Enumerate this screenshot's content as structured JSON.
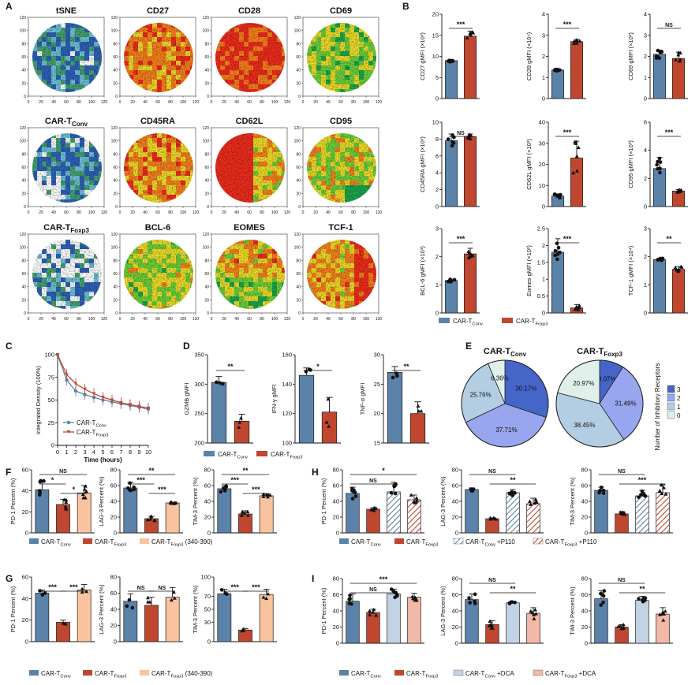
{
  "colors": {
    "conv": "#5b82a8",
    "foxp3": "#c0472f",
    "foxp3_light": "#f9c49d",
    "conv_light": "#c3d3e6",
    "pink": "#f2b8a8",
    "pie3": "#4565c9",
    "pie2": "#98a5ef",
    "pie1": "#b3cee3",
    "pie0": "#dff0ea",
    "heatmap": [
      "#ef2d1c",
      "#f6811d",
      "#eedc29",
      "#6ed03a",
      "#1aa84d"
    ]
  },
  "panel_labels": [
    "A",
    "B",
    "C",
    "D",
    "E",
    "F",
    "G",
    "H",
    "I"
  ],
  "tsne": {
    "titles": [
      "tSNE",
      "CD27",
      "CD28",
      "CD69",
      "CAR-T",
      "CD45RA",
      "CD62L",
      "CD95",
      "CAR-T",
      "BCL-6",
      "EOMES",
      "TCF-1"
    ],
    "title_subs": [
      "",
      "",
      "",
      "",
      "Conv",
      "",
      "",
      "",
      "Foxp3",
      "",
      "",
      ""
    ],
    "xticks": [
      "0",
      "20",
      "40",
      "60",
      "80",
      "100",
      "120"
    ],
    "yticks": [
      "0",
      "20",
      "40",
      "60",
      "80",
      "100",
      "120"
    ]
  },
  "legend": {
    "conv_prefix": "CAR-T",
    "conv_sub": "Conv",
    "foxp3_prefix": "CAR-T",
    "foxp3_sub": "Foxp3",
    "foxp3_suffix": " (340-390)",
    "p110": " +P110",
    "dca": " +DCA"
  },
  "chart_data": [
    {
      "panel": "B",
      "type": "bar",
      "ylabel": "CD27 gMFI (×10³)",
      "ylim": [
        0,
        20
      ],
      "ticks": [
        0,
        5,
        10,
        15,
        20
      ],
      "values": [
        9.0,
        14.8
      ],
      "errors": [
        0.3,
        1.2
      ],
      "sig": [
        [
          "***",
          0,
          1
        ]
      ]
    },
    {
      "panel": "B",
      "type": "bar",
      "ylabel": "CD28 gMFI (×10⁴)",
      "ylim": [
        0,
        4
      ],
      "ticks": [
        0,
        1,
        2,
        3,
        4
      ],
      "values": [
        1.35,
        2.7
      ],
      "errors": [
        0.05,
        0.1
      ],
      "sig": [
        [
          "***",
          0,
          1
        ]
      ]
    },
    {
      "panel": "B",
      "type": "bar",
      "ylabel": "CD69 gMFI (×10²)",
      "ylim": [
        0,
        4
      ],
      "ticks": [
        0,
        1,
        2,
        3,
        4
      ],
      "values": [
        2.1,
        1.9
      ],
      "errors": [
        0.2,
        0.3
      ],
      "sig": [
        [
          "NS",
          0,
          1
        ]
      ]
    },
    {
      "panel": "B",
      "type": "bar",
      "ylabel": "CD45RA gMFI (×10³)",
      "ylim": [
        0,
        10
      ],
      "ticks": [
        0,
        2,
        4,
        6,
        8,
        10
      ],
      "values": [
        7.8,
        8.3
      ],
      "errors": [
        0.8,
        0.3
      ],
      "sig": [
        [
          "NS",
          0,
          1
        ]
      ]
    },
    {
      "panel": "B",
      "type": "bar",
      "ylabel": "CD62L gMFI (×10³)",
      "ylim": [
        0,
        40
      ],
      "ticks": [
        0,
        10,
        20,
        30,
        40
      ],
      "values": [
        5.0,
        23.0
      ],
      "errors": [
        1.0,
        8.0
      ],
      "sig": [
        [
          "***",
          0,
          1
        ]
      ]
    },
    {
      "panel": "B",
      "type": "bar",
      "ylabel": "CD95 gMFI (×10³)",
      "ylim": [
        0,
        6
      ],
      "ticks": [
        0,
        2,
        4,
        6
      ],
      "values": [
        2.7,
        1.1
      ],
      "errors": [
        0.8,
        0.1
      ],
      "sig": [
        [
          "***",
          0,
          1
        ]
      ]
    },
    {
      "panel": "B",
      "type": "bar",
      "ylabel": "BCL-6 gMFI (×10³)",
      "ylim": [
        0,
        3
      ],
      "ticks": [
        0,
        1,
        2,
        3
      ],
      "values": [
        1.15,
        2.1
      ],
      "errors": [
        0.05,
        0.2
      ],
      "sig": [
        [
          "***",
          0,
          1
        ]
      ]
    },
    {
      "panel": "B",
      "type": "bar",
      "ylabel": "Eomes gMFI (×10²)",
      "ylim": [
        0,
        2.5
      ],
      "ticks": [
        0.0,
        0.5,
        1.0,
        1.5,
        2.0,
        2.5
      ],
      "values": [
        1.8,
        0.15
      ],
      "errors": [
        0.4,
        0.1
      ],
      "sig": [
        [
          "***",
          0,
          1
        ]
      ]
    },
    {
      "panel": "B",
      "type": "bar",
      "ylabel": "TCF-1 gMFI (×10⁴)",
      "ylim": [
        0,
        3
      ],
      "ticks": [
        0,
        1,
        2,
        3
      ],
      "values": [
        1.9,
        1.55
      ],
      "errors": [
        0.05,
        0.1
      ],
      "sig": [
        [
          "**",
          0,
          1
        ]
      ]
    },
    {
      "panel": "C",
      "type": "line",
      "xlabel": "Time (hours)",
      "ylabel": "Integrated Density (100%)",
      "ylim": [
        0,
        100
      ],
      "ticks": [
        0,
        25,
        50,
        75,
        100
      ],
      "x": [
        0,
        1,
        2,
        3,
        4,
        5,
        6,
        7,
        8,
        9,
        10
      ],
      "series": [
        {
          "values": [
            100,
            72,
            60,
            56,
            53,
            50,
            48,
            46,
            44,
            42,
            40
          ]
        },
        {
          "values": [
            100,
            78,
            68,
            62,
            57,
            53,
            50,
            47,
            45,
            43,
            41
          ]
        }
      ]
    },
    {
      "panel": "D",
      "type": "bar",
      "ylabel": "GZMB gMFI",
      "ylim": [
        200,
        350
      ],
      "ticks": [
        200,
        250,
        300,
        350
      ],
      "values": [
        303,
        237
      ],
      "errors": [
        10,
        12
      ],
      "sig": [
        [
          "**",
          0,
          1
        ]
      ]
    },
    {
      "panel": "D",
      "type": "bar",
      "ylabel": "IFN-γ gMFI",
      "ylim": [
        100,
        160
      ],
      "ticks": [
        100,
        120,
        140,
        160
      ],
      "values": [
        146,
        121
      ],
      "errors": [
        5,
        10
      ],
      "sig": [
        [
          "*",
          0,
          1
        ]
      ]
    },
    {
      "panel": "D",
      "type": "bar",
      "ylabel": "TNF-α gMFI",
      "ylim": [
        15,
        30
      ],
      "ticks": [
        15,
        20,
        25,
        30
      ],
      "values": [
        27,
        20
      ],
      "errors": [
        1,
        2
      ],
      "sig": [
        [
          "**",
          0,
          1
        ]
      ]
    },
    {
      "panel": "E",
      "type": "pie",
      "title_prefix": "CAR-T",
      "title_sub": "Conv",
      "values": [
        30.17,
        37.71,
        25.76,
        6.36
      ],
      "labels": [
        "30.17%",
        "37.71%",
        "25.76%",
        "6.36%"
      ]
    },
    {
      "panel": "E",
      "type": "pie",
      "title_prefix": "CAR-T",
      "title_sub": "Foxp3",
      "values": [
        9.07,
        31.49,
        38.45,
        20.97
      ],
      "labels": [
        "9.07%",
        "31.49%",
        "38.45%",
        "20.97%"
      ],
      "legend_title": "Number of Inhibitory Receptors",
      "legend": [
        "3",
        "2",
        "1",
        "0"
      ]
    },
    {
      "panel": "F",
      "type": "bar",
      "ylabel": "PD-1 Percent (%)",
      "ylim": [
        0,
        60
      ],
      "ticks": [
        0,
        20,
        40,
        60
      ],
      "values": [
        41,
        27,
        38
      ],
      "errors": [
        9,
        5,
        7
      ],
      "sig": [
        [
          "NS",
          0,
          2
        ],
        [
          "*",
          0,
          1
        ],
        [
          "*",
          1,
          2
        ]
      ]
    },
    {
      "panel": "F",
      "type": "bar",
      "ylabel": "LAG-3 Percent (%)",
      "ylim": [
        0,
        80
      ],
      "ticks": [
        0,
        20,
        40,
        60,
        80
      ],
      "values": [
        57,
        18,
        38
      ],
      "errors": [
        7,
        3,
        1
      ],
      "sig": [
        [
          "**",
          0,
          2
        ],
        [
          "***",
          0,
          1
        ],
        [
          "***",
          1,
          2
        ]
      ]
    },
    {
      "panel": "F",
      "type": "bar",
      "ylabel": "TIM-3 Percent (%)",
      "ylim": [
        0,
        80
      ],
      "ticks": [
        0,
        20,
        40,
        60,
        80
      ],
      "values": [
        56,
        24,
        47
      ],
      "errors": [
        4,
        4,
        2
      ],
      "sig": [
        [
          "**",
          0,
          2
        ],
        [
          "***",
          0,
          1
        ],
        [
          "***",
          1,
          2
        ]
      ]
    },
    {
      "panel": "G",
      "type": "bar",
      "ylabel": "PD-1 Percent (%)",
      "ylim": [
        0,
        60
      ],
      "ticks": [
        0,
        20,
        40,
        60
      ],
      "values": [
        45,
        18,
        48
      ],
      "errors": [
        3,
        2,
        5
      ],
      "sig": [
        [
          "***",
          0,
          1
        ],
        [
          "***",
          1,
          2
        ]
      ]
    },
    {
      "panel": "G",
      "type": "bar",
      "ylabel": "LAG-3 Percent (%)",
      "ylim": [
        0,
        80
      ],
      "ticks": [
        0,
        20,
        40,
        60,
        80
      ],
      "values": [
        50,
        45,
        55
      ],
      "errors": [
        9,
        10,
        12
      ],
      "sig": [
        [
          "NS",
          0,
          1
        ],
        [
          "NS",
          1,
          2
        ]
      ]
    },
    {
      "panel": "G",
      "type": "bar",
      "ylabel": "TIM-3 Percent (%)",
      "ylim": [
        0,
        100
      ],
      "ticks": [
        0,
        30,
        50,
        70,
        100
      ],
      "values": [
        74,
        18,
        73
      ],
      "errors": [
        7,
        2,
        8
      ],
      "sig": [
        [
          "***",
          0,
          1
        ],
        [
          "***",
          1,
          2
        ]
      ]
    },
    {
      "panel": "H",
      "type": "bar",
      "ylabel": "PD-1 Percent (%)",
      "ylim": [
        0,
        80
      ],
      "ticks": [
        0,
        20,
        40,
        60,
        80
      ],
      "values": [
        50,
        30,
        52,
        42
      ],
      "errors": [
        8,
        2,
        12,
        6
      ],
      "sig": [
        [
          "*",
          0,
          3
        ],
        [
          "NS",
          0,
          2
        ]
      ]
    },
    {
      "panel": "H",
      "type": "bar",
      "ylabel": "LAG-3 Percent (%)",
      "ylim": [
        0,
        80
      ],
      "ticks": [
        0,
        20,
        40,
        60,
        80
      ],
      "values": [
        55,
        18,
        51,
        37
      ],
      "errors": [
        2,
        1,
        4,
        7
      ],
      "sig": [
        [
          "NS",
          0,
          2
        ],
        [
          "**",
          1,
          3
        ]
      ]
    },
    {
      "panel": "H",
      "type": "bar",
      "ylabel": "TIM-3 Percent (%)",
      "ylim": [
        0,
        80
      ],
      "ticks": [
        0,
        20,
        40,
        60,
        80
      ],
      "values": [
        54,
        24,
        47,
        51
      ],
      "errors": [
        4,
        3,
        7,
        10
      ],
      "sig": [
        [
          "NS",
          0,
          2
        ],
        [
          "***",
          1,
          3
        ]
      ]
    },
    {
      "panel": "I",
      "type": "bar",
      "ylabel": "PD-1 Percent (%)",
      "ylim": [
        0,
        80
      ],
      "ticks": [
        0,
        20,
        40,
        60,
        80
      ],
      "values": [
        52,
        38,
        61,
        57
      ],
      "errors": [
        9,
        4,
        6,
        5
      ],
      "sig": [
        [
          "***",
          0,
          3
        ],
        [
          "NS",
          0,
          2
        ]
      ]
    },
    {
      "panel": "I",
      "type": "bar",
      "ylabel": "LAG-3 Percent (%)",
      "ylim": [
        0,
        80
      ],
      "ticks": [
        0,
        20,
        40,
        60,
        80
      ],
      "values": [
        54,
        23,
        50,
        37
      ],
      "errors": [
        7,
        5,
        1,
        7
      ],
      "sig": [
        [
          "NS",
          0,
          2
        ],
        [
          "**",
          1,
          3
        ]
      ]
    },
    {
      "panel": "I",
      "type": "bar",
      "ylabel": "TIM-3 Percent (%)",
      "ylim": [
        0,
        80
      ],
      "ticks": [
        0,
        20,
        40,
        60,
        80
      ],
      "values": [
        55,
        20,
        53,
        36
      ],
      "errors": [
        10,
        3,
        5,
        8
      ],
      "sig": [
        [
          "NS",
          0,
          2
        ],
        [
          "**",
          1,
          3
        ]
      ]
    }
  ]
}
